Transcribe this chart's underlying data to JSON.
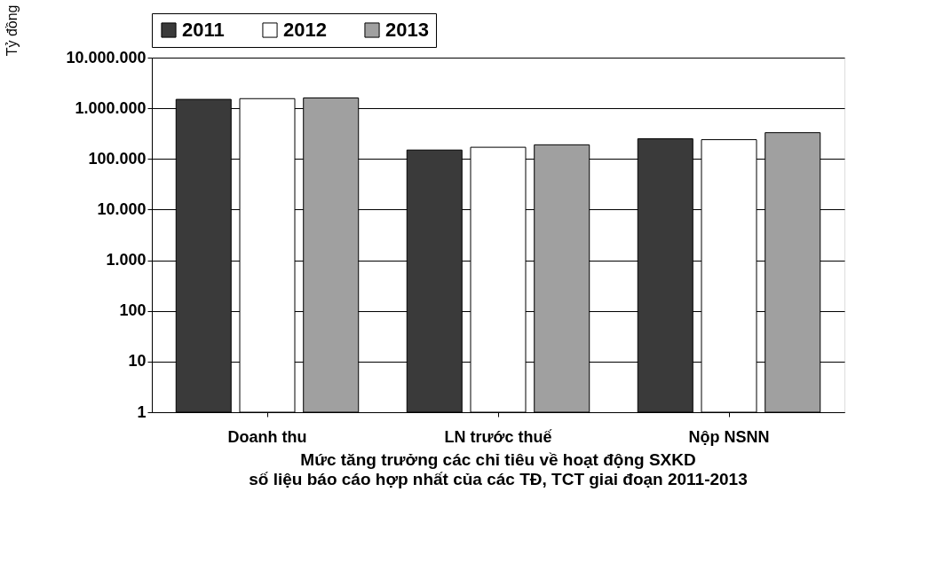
{
  "chart_data": {
    "type": "bar",
    "title": "Mức tăng trưởng các chỉ tiêu về hoạt động SXKD",
    "subtitle": "số liệu báo cáo hợp nhất của các TĐ, TCT giai đoạn 2011-2013",
    "ylabel": "Tỷ đồng",
    "categories": [
      "Doanh thu",
      "LN trước thuế",
      "Nộp NSNN"
    ],
    "series": [
      {
        "name": "2011",
        "color": "#3a3a3a",
        "values": [
          1500000,
          150000,
          250000
        ]
      },
      {
        "name": "2012",
        "color": "#ffffff",
        "values": [
          1550000,
          170000,
          240000
        ]
      },
      {
        "name": "2013",
        "color": "#a0a0a0",
        "values": [
          1600000,
          190000,
          330000
        ]
      }
    ],
    "log": true,
    "ylim": [
      1,
      10000000
    ],
    "yticks": [
      {
        "value": 1,
        "label": "1"
      },
      {
        "value": 10,
        "label": "10"
      },
      {
        "value": 100,
        "label": "100"
      },
      {
        "value": 1000,
        "label": "1.000"
      },
      {
        "value": 10000,
        "label": "10.000"
      },
      {
        "value": 100000,
        "label": "100.000"
      },
      {
        "value": 1000000,
        "label": "1.000.000"
      },
      {
        "value": 10000000,
        "label": "10.000.000"
      }
    ],
    "grid": "y",
    "legend": "top"
  }
}
